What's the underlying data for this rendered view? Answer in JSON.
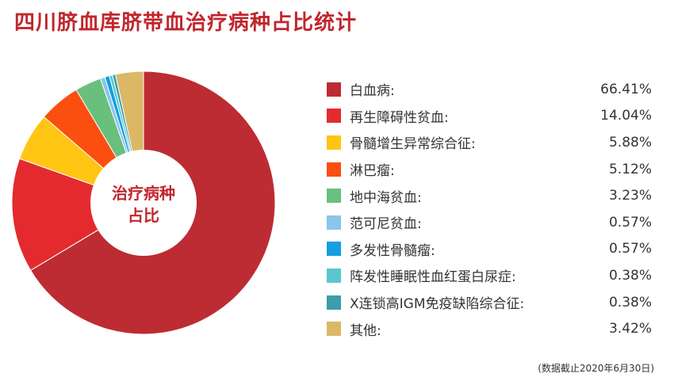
{
  "title": "四川脐血库脐带血治疗病种占比统计",
  "center_label": [
    "治疗病种",
    "占比"
  ],
  "note": "(数据截止2020年6月30日)",
  "chart_data": {
    "type": "pie",
    "title": "四川脐血库脐带血治疗病种占比统计",
    "legend_position": "right",
    "slices": [
      {
        "label": "白血病:",
        "value": "66.41%",
        "percent": 66.41,
        "color": "#bd2c32"
      },
      {
        "label": "再生障碍性贫血:",
        "value": "14.04%",
        "percent": 14.04,
        "color": "#e42a2f"
      },
      {
        "label": "骨髓增生异常综合征:",
        "value": "5.88%",
        "percent": 5.88,
        "color": "#ffc512"
      },
      {
        "label": "淋巴瘤:",
        "value": "5.12%",
        "percent": 5.12,
        "color": "#fb4f0f"
      },
      {
        "label": "地中海贫血:",
        "value": "3.23%",
        "percent": 3.23,
        "color": "#69c07c"
      },
      {
        "label": "范可尼贫血:",
        "value": "0.57%",
        "percent": 0.57,
        "color": "#89c5ec"
      },
      {
        "label": "多发性骨髓瘤:",
        "value": "0.57%",
        "percent": 0.57,
        "color": "#169ee0"
      },
      {
        "label": "阵发性睡眠性血红蛋白尿症:",
        "value": "0.38%",
        "percent": 0.38,
        "color": "#5ac7cd"
      },
      {
        "label": "X连锁高IGM免疫缺陷综合征:",
        "value": "0.38%",
        "percent": 0.38,
        "color": "#3d9da9"
      },
      {
        "label": "其他:",
        "value": "3.42%",
        "percent": 3.42,
        "color": "#dbb866"
      }
    ]
  }
}
